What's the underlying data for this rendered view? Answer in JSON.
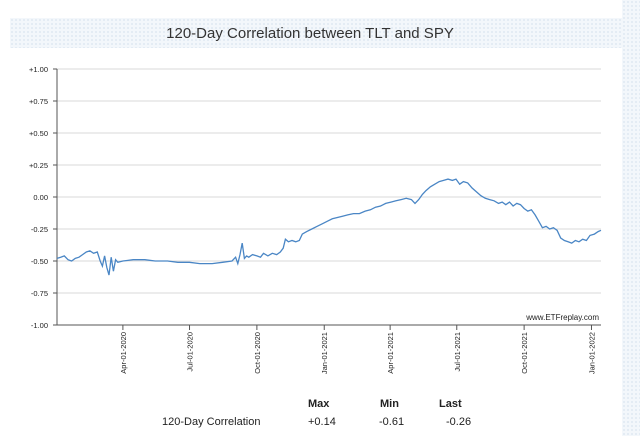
{
  "chart_data": {
    "type": "line",
    "title": "120-Day Correlation between TLT and SPY",
    "xlabel": "",
    "ylabel": "",
    "x_range": [
      "2020-01-02",
      "2022-01-14"
    ],
    "ylim": [
      -1.0,
      1.0
    ],
    "y_ticks": [
      "+1.00",
      "+0.75",
      "+0.50",
      "+0.25",
      "0.00",
      "-0.25",
      "-0.50",
      "-0.75",
      "-1.00"
    ],
    "x_ticks": [
      "Apr-01-2020",
      "Jul-01-2020",
      "Oct-01-2020",
      "Jan-01-2021",
      "Apr-01-2021",
      "Jul-01-2021",
      "Oct-01-2021",
      "Jan-01-2022"
    ],
    "grid": true,
    "line_color": "#4a86c5",
    "watermark": "www.ETFreplay.com",
    "series": [
      {
        "points": [
          [
            "2020-01-02",
            -0.48
          ],
          [
            "2020-01-07",
            -0.47
          ],
          [
            "2020-01-12",
            -0.46
          ],
          [
            "2020-01-17",
            -0.49
          ],
          [
            "2020-01-22",
            -0.5
          ],
          [
            "2020-01-27",
            -0.48
          ],
          [
            "2020-02-01",
            -0.47
          ],
          [
            "2020-02-06",
            -0.45
          ],
          [
            "2020-02-11",
            -0.43
          ],
          [
            "2020-02-16",
            -0.42
          ],
          [
            "2020-02-21",
            -0.44
          ],
          [
            "2020-02-26",
            -0.43
          ],
          [
            "2020-03-01",
            -0.5
          ],
          [
            "2020-03-04",
            -0.54
          ],
          [
            "2020-03-07",
            -0.46
          ],
          [
            "2020-03-10",
            -0.55
          ],
          [
            "2020-03-13",
            -0.61
          ],
          [
            "2020-03-16",
            -0.47
          ],
          [
            "2020-03-19",
            -0.58
          ],
          [
            "2020-03-22",
            -0.49
          ],
          [
            "2020-03-25",
            -0.51
          ],
          [
            "2020-04-01",
            -0.5
          ],
          [
            "2020-04-15",
            -0.49
          ],
          [
            "2020-05-01",
            -0.49
          ],
          [
            "2020-05-15",
            -0.5
          ],
          [
            "2020-06-01",
            -0.5
          ],
          [
            "2020-06-15",
            -0.51
          ],
          [
            "2020-07-01",
            -0.51
          ],
          [
            "2020-07-15",
            -0.52
          ],
          [
            "2020-08-01",
            -0.52
          ],
          [
            "2020-08-15",
            -0.51
          ],
          [
            "2020-08-28",
            -0.5
          ],
          [
            "2020-09-02",
            -0.47
          ],
          [
            "2020-09-05",
            -0.52
          ],
          [
            "2020-09-08",
            -0.45
          ],
          [
            "2020-09-11",
            -0.36
          ],
          [
            "2020-09-14",
            -0.48
          ],
          [
            "2020-09-17",
            -0.46
          ],
          [
            "2020-09-20",
            -0.47
          ],
          [
            "2020-09-25",
            -0.45
          ],
          [
            "2020-10-01",
            -0.46
          ],
          [
            "2020-10-06",
            -0.47
          ],
          [
            "2020-10-10",
            -0.44
          ],
          [
            "2020-10-16",
            -0.46
          ],
          [
            "2020-10-22",
            -0.44
          ],
          [
            "2020-10-28",
            -0.45
          ],
          [
            "2020-11-02",
            -0.43
          ],
          [
            "2020-11-06",
            -0.4
          ],
          [
            "2020-11-09",
            -0.33
          ],
          [
            "2020-11-13",
            -0.35
          ],
          [
            "2020-11-18",
            -0.34
          ],
          [
            "2020-11-23",
            -0.35
          ],
          [
            "2020-11-28",
            -0.34
          ],
          [
            "2020-12-02",
            -0.29
          ],
          [
            "2020-12-08",
            -0.27
          ],
          [
            "2020-12-15",
            -0.25
          ],
          [
            "2020-12-22",
            -0.23
          ],
          [
            "2020-12-29",
            -0.21
          ],
          [
            "2021-01-05",
            -0.19
          ],
          [
            "2021-01-12",
            -0.17
          ],
          [
            "2021-01-19",
            -0.16
          ],
          [
            "2021-01-26",
            -0.15
          ],
          [
            "2021-02-02",
            -0.14
          ],
          [
            "2021-02-10",
            -0.13
          ],
          [
            "2021-02-18",
            -0.13
          ],
          [
            "2021-02-26",
            -0.11
          ],
          [
            "2021-03-05",
            -0.1
          ],
          [
            "2021-03-12",
            -0.08
          ],
          [
            "2021-03-19",
            -0.07
          ],
          [
            "2021-03-26",
            -0.05
          ],
          [
            "2021-04-02",
            -0.04
          ],
          [
            "2021-04-09",
            -0.03
          ],
          [
            "2021-04-16",
            -0.02
          ],
          [
            "2021-04-23",
            -0.01
          ],
          [
            "2021-04-30",
            -0.02
          ],
          [
            "2021-05-05",
            -0.05
          ],
          [
            "2021-05-10",
            -0.02
          ],
          [
            "2021-05-15",
            0.02
          ],
          [
            "2021-05-20",
            0.05
          ],
          [
            "2021-05-26",
            0.08
          ],
          [
            "2021-06-01",
            0.1
          ],
          [
            "2021-06-07",
            0.12
          ],
          [
            "2021-06-13",
            0.13
          ],
          [
            "2021-06-19",
            0.14
          ],
          [
            "2021-06-25",
            0.13
          ],
          [
            "2021-06-30",
            0.14
          ],
          [
            "2021-07-05",
            0.1
          ],
          [
            "2021-07-10",
            0.12
          ],
          [
            "2021-07-16",
            0.11
          ],
          [
            "2021-07-22",
            0.07
          ],
          [
            "2021-07-28",
            0.04
          ],
          [
            "2021-08-03",
            0.01
          ],
          [
            "2021-08-09",
            -0.01
          ],
          [
            "2021-08-15",
            -0.02
          ],
          [
            "2021-08-21",
            -0.03
          ],
          [
            "2021-08-27",
            -0.05
          ],
          [
            "2021-09-01",
            -0.04
          ],
          [
            "2021-09-06",
            -0.06
          ],
          [
            "2021-09-11",
            -0.04
          ],
          [
            "2021-09-16",
            -0.07
          ],
          [
            "2021-09-21",
            -0.05
          ],
          [
            "2021-09-26",
            -0.06
          ],
          [
            "2021-10-01",
            -0.09
          ],
          [
            "2021-10-06",
            -0.11
          ],
          [
            "2021-10-11",
            -0.1
          ],
          [
            "2021-10-16",
            -0.14
          ],
          [
            "2021-10-21",
            -0.19
          ],
          [
            "2021-10-26",
            -0.24
          ],
          [
            "2021-10-31",
            -0.23
          ],
          [
            "2021-11-05",
            -0.25
          ],
          [
            "2021-11-10",
            -0.24
          ],
          [
            "2021-11-15",
            -0.26
          ],
          [
            "2021-11-20",
            -0.32
          ],
          [
            "2021-11-25",
            -0.34
          ],
          [
            "2021-11-30",
            -0.35
          ],
          [
            "2021-12-05",
            -0.36
          ],
          [
            "2021-12-10",
            -0.34
          ],
          [
            "2021-12-15",
            -0.35
          ],
          [
            "2021-12-20",
            -0.33
          ],
          [
            "2021-12-25",
            -0.34
          ],
          [
            "2021-12-30",
            -0.3
          ],
          [
            "2022-01-05",
            -0.29
          ],
          [
            "2022-01-10",
            -0.27
          ],
          [
            "2022-01-14",
            -0.26
          ]
        ]
      }
    ]
  },
  "stats": {
    "headers": [
      "Max",
      "Min",
      "Last"
    ],
    "row": {
      "label": "120-Day Correlation",
      "max": "+0.14",
      "min": "-0.61",
      "last": "-0.26"
    }
  }
}
